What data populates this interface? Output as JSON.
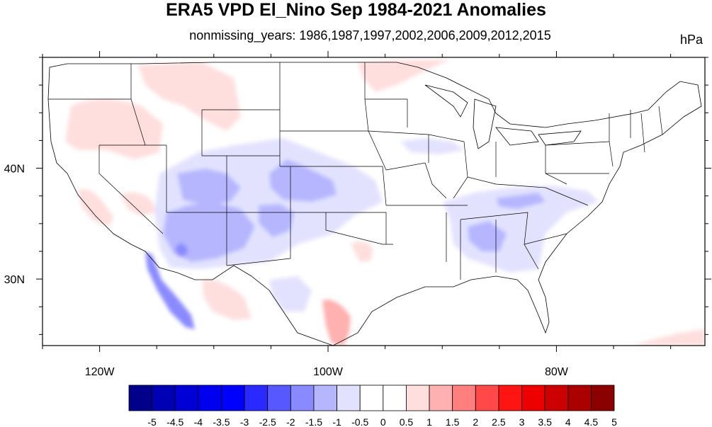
{
  "title": "ERA5 VPD El_Nino Sep 1984-2021 Anomalies",
  "subtitle": "nonmissing_years: 1986,1987,1997,2002,2006,2009,2012,2015",
  "units": "hPa",
  "map": {
    "projection": "cylindrical-equidistant",
    "lon_range": [
      -125,
      -67
    ],
    "lat_range": [
      24,
      50
    ],
    "x_ticks": [
      {
        "lon": -120,
        "label": "120W"
      },
      {
        "lon": -100,
        "label": "100W"
      },
      {
        "lon": -80,
        "label": "80W"
      }
    ],
    "y_ticks": [
      {
        "lat": 30,
        "label": "30N"
      },
      {
        "lat": 40,
        "label": "40N"
      }
    ]
  },
  "colorbar": {
    "labels": [
      "-5",
      "-4.5",
      "-4",
      "-3.5",
      "-3",
      "-2.5",
      "-2",
      "-1.5",
      "-1",
      "-0.5",
      "0",
      "0.5",
      "1",
      "1.5",
      "2",
      "2.5",
      "3",
      "3.5",
      "4",
      "4.5",
      "5"
    ],
    "colors": [
      "#00008b",
      "#0000b5",
      "#0000d6",
      "#0000ee",
      "#0000ff",
      "#2a2aff",
      "#5858ff",
      "#8a8aff",
      "#b6b6ff",
      "#e2e2ff",
      "#ffffff",
      "#ffffff",
      "#ffdede",
      "#ffb0b0",
      "#ff7f7f",
      "#ff4848",
      "#ff1414",
      "#ee0000",
      "#cc0000",
      "#aa0000",
      "#8b0000"
    ]
  },
  "anomaly_regions": [
    {
      "name": "southwest-negative",
      "sign": "negative",
      "level": -1
    },
    {
      "name": "arizona-core",
      "sign": "negative",
      "level": -1.5
    },
    {
      "name": "colorado-core",
      "sign": "negative",
      "level": -1.5
    },
    {
      "name": "southeast-negative",
      "sign": "negative",
      "level": -1
    },
    {
      "name": "baja-strip",
      "sign": "negative",
      "level": -1.5
    },
    {
      "name": "oregon-idaho-positive",
      "sign": "positive",
      "level": 1
    },
    {
      "name": "montana-positive",
      "sign": "positive",
      "level": 1
    },
    {
      "name": "south-texas-positive",
      "sign": "positive",
      "level": 1.5
    }
  ]
}
